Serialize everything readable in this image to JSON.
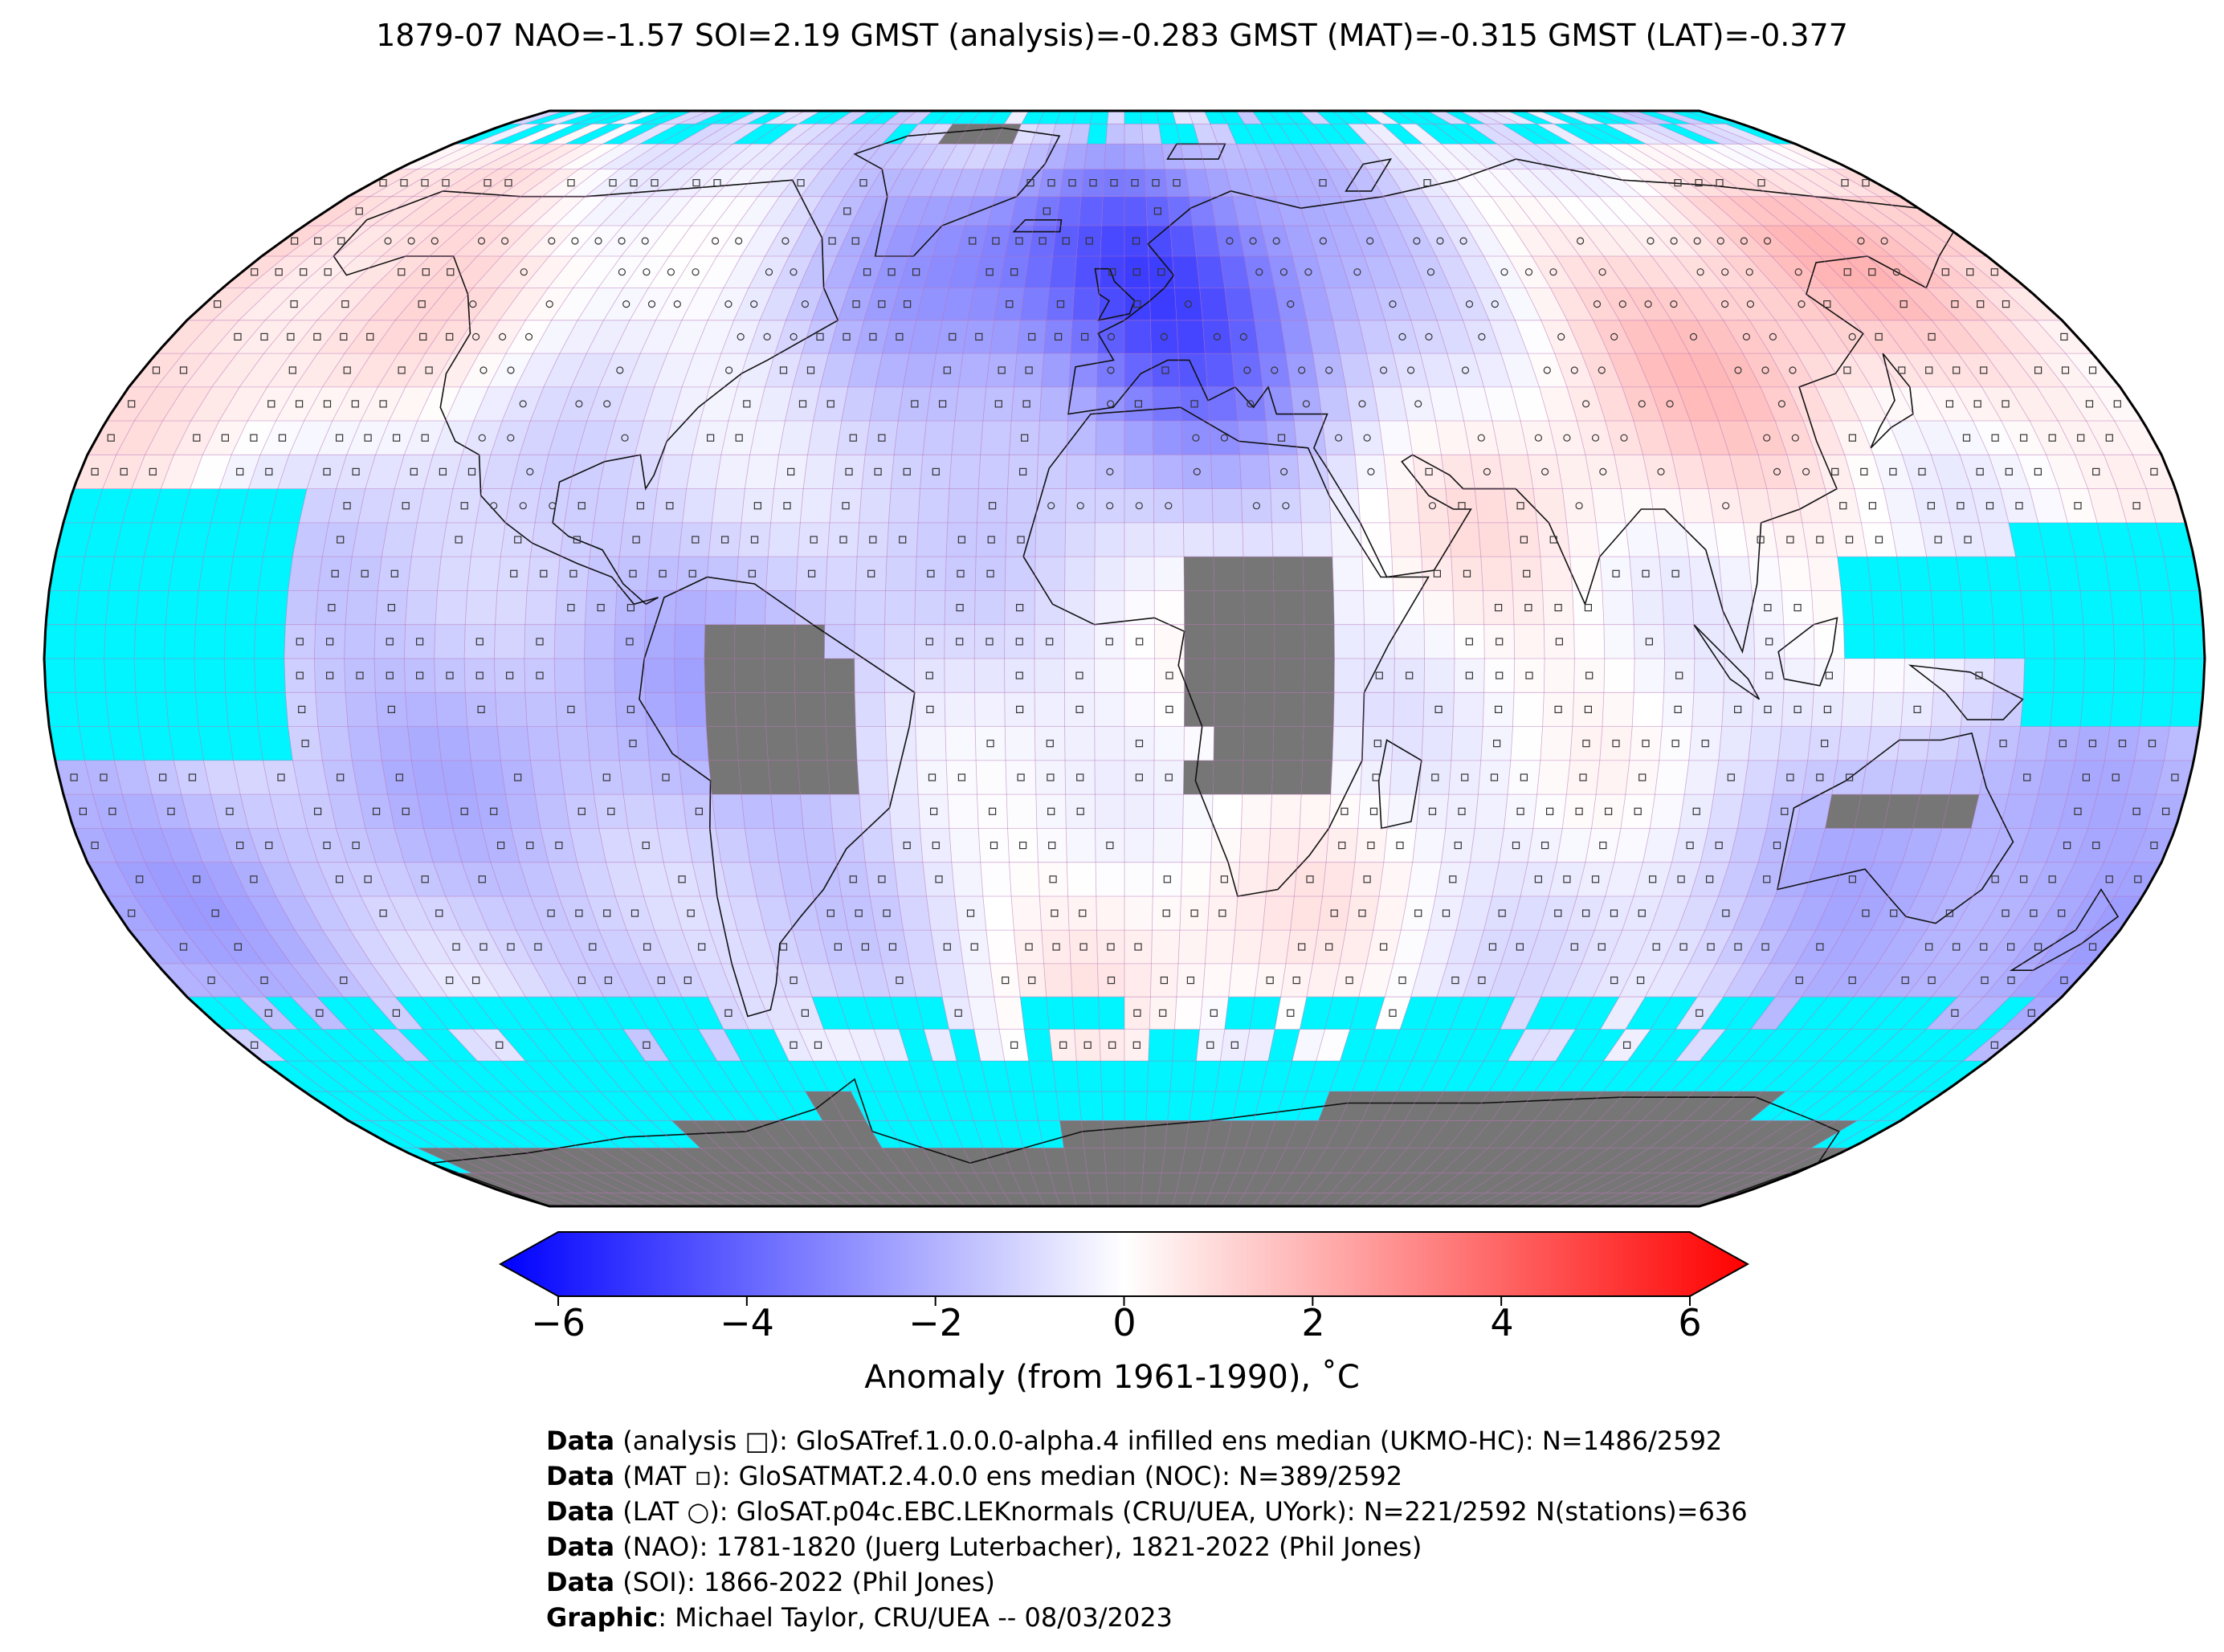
{
  "title": "1879-07 NAO=-1.57 SOI=2.19 GMST (analysis)=-0.283 GMST (MAT)=-0.315 GMST (LAT)=-0.377",
  "colorbar": {
    "label": "Anomaly (from 1961-1990), ˚C",
    "ticks": [
      "−6",
      "−4",
      "−2",
      "0",
      "2",
      "4",
      "6"
    ],
    "min": -6,
    "max": 6,
    "colors": {
      "cold": "#0000ff",
      "neutral": "#ffffff",
      "warm": "#ff0000"
    }
  },
  "map": {
    "projection": "Robinson",
    "colors": {
      "ocean_no_data": "#00f5ff",
      "land_no_data": "#767676",
      "grid": "#b36bb3"
    },
    "legend_markers": {
      "analysis": "square",
      "MAT": "small-square",
      "LAT": "circle"
    }
  },
  "credits": [
    {
      "key": "Data",
      "text": " (analysis □): GloSATref.1.0.0.0-alpha.4 infilled ens median (UKMO-HC): N=1486/2592"
    },
    {
      "key": "Data",
      "text": " (MAT ▫): GloSATMAT.2.4.0.0 ens median (NOC): N=389/2592"
    },
    {
      "key": "Data",
      "text": " (LAT ○): GloSAT.p04c.EBC.LEKnormals (CRU/UEA, UYork): N=221/2592 N(stations)=636"
    },
    {
      "key": "Data",
      "text": " (NAO): 1781-1820 (Juerg Luterbacher), 1821-2022 (Phil Jones)"
    },
    {
      "key": "Data",
      "text": " (SOI): 1866-2022 (Phil Jones)"
    },
    {
      "key": "Graphic",
      "text": ": Michael Taylor, CRU/UEA -- 08/03/2023"
    }
  ]
}
